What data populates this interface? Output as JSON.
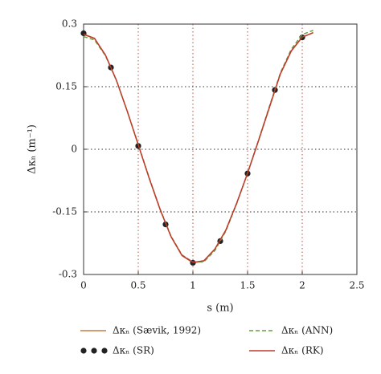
{
  "chart_data": {
    "type": "line",
    "x_label": "s (m)",
    "y_label": "Δκₙ (m⁻¹)",
    "xlim": [
      0,
      2.5
    ],
    "xticks": [
      0,
      0.5,
      1,
      1.5,
      2,
      2.5
    ],
    "ylim": [
      -0.3,
      0.3
    ],
    "yticks": [
      -0.3,
      -0.15,
      0,
      0.15,
      0.3
    ],
    "grid": true,
    "series": [
      {
        "name": "Δκₙ (Sævik, 1992)",
        "color": "#c77a45",
        "style": "solid",
        "x": [
          0,
          0.1,
          0.2,
          0.3,
          0.4,
          0.5,
          0.6,
          0.7,
          0.8,
          0.9,
          1.0,
          1.1,
          1.2,
          1.3,
          1.4,
          1.5,
          1.6,
          1.7,
          1.8,
          1.9,
          2.0,
          2.1
        ],
        "values": [
          0.275,
          0.265,
          0.225,
          0.165,
          0.09,
          0.01,
          -0.07,
          -0.145,
          -0.21,
          -0.255,
          -0.272,
          -0.268,
          -0.24,
          -0.195,
          -0.13,
          -0.058,
          0.02,
          0.1,
          0.18,
          0.235,
          0.268,
          0.28
        ]
      },
      {
        "name": "Δκₙ (SR)",
        "color": "#222222",
        "style": "dots",
        "x": [
          0,
          0.25,
          0.5,
          0.75,
          1.0,
          1.25,
          1.5,
          1.75,
          2.0
        ],
        "values": [
          0.278,
          0.196,
          0.008,
          -0.18,
          -0.272,
          -0.22,
          -0.058,
          0.142,
          0.268
        ]
      },
      {
        "name": "Δκₙ (ANN)",
        "color": "#6a9a4a",
        "style": "dashed",
        "x": [
          0,
          0.1,
          0.2,
          0.3,
          0.4,
          0.5,
          0.6,
          0.7,
          0.8,
          0.9,
          1.0,
          1.1,
          1.2,
          1.3,
          1.4,
          1.5,
          1.6,
          1.7,
          1.8,
          1.9,
          2.0,
          2.1
        ],
        "values": [
          0.27,
          0.262,
          0.224,
          0.165,
          0.091,
          0.012,
          -0.068,
          -0.143,
          -0.208,
          -0.253,
          -0.27,
          -0.27,
          -0.243,
          -0.197,
          -0.131,
          -0.057,
          0.022,
          0.103,
          0.183,
          0.24,
          0.275,
          0.285
        ]
      },
      {
        "name": "Δκₙ (RK)",
        "color": "#c0392b",
        "style": "solid",
        "x": [
          0,
          0.1,
          0.2,
          0.3,
          0.4,
          0.5,
          0.6,
          0.7,
          0.8,
          0.9,
          1.0,
          1.1,
          1.2,
          1.3,
          1.4,
          1.5,
          1.6,
          1.7,
          1.8,
          1.9,
          2.0,
          2.1
        ],
        "values": [
          0.276,
          0.266,
          0.226,
          0.166,
          0.091,
          0.011,
          -0.069,
          -0.144,
          -0.209,
          -0.254,
          -0.271,
          -0.267,
          -0.239,
          -0.194,
          -0.129,
          -0.057,
          0.021,
          0.101,
          0.181,
          0.236,
          0.269,
          0.279
        ]
      }
    ]
  }
}
